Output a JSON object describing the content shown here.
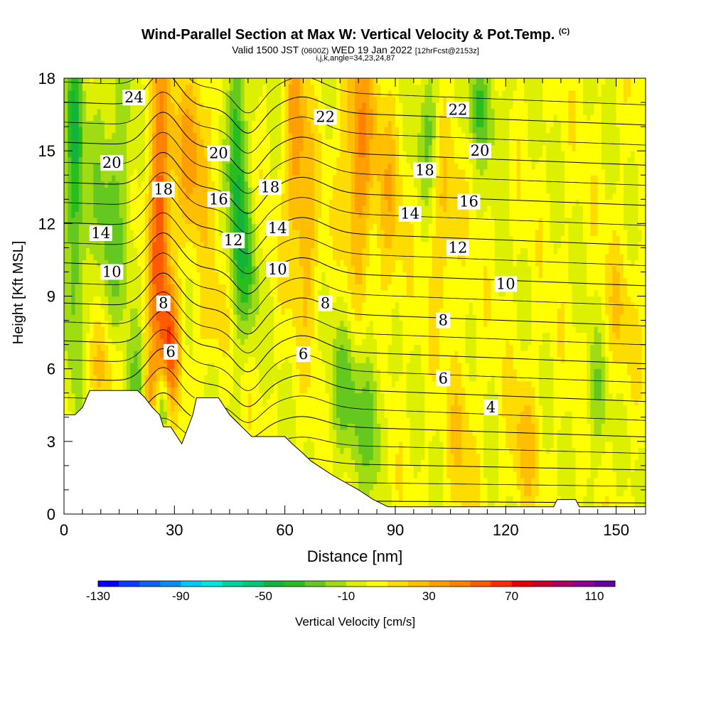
{
  "title": {
    "main": "Wind-Parallel Section at Max W: Vertical Velocity & Pot.Temp.",
    "copyright": "(C)",
    "valid_prefix": "Valid 1500 JST",
    "valid_utc": "(0600Z)",
    "valid_date": "WED 19 Jan 2022",
    "forecast": "[12hrFcst@2153z]",
    "indices": "i,j,k,angle=34,23,24,87"
  },
  "chart_data": {
    "type": "heatmap",
    "title": "Wind-Parallel Section at Max W: Vertical Velocity & Pot.Temp.",
    "xlabel": "Distance [nm]",
    "ylabel": "Height [Kft MSL]",
    "xlim": [
      0,
      158
    ],
    "ylim": [
      0,
      18
    ],
    "xticks": [
      0,
      30,
      60,
      90,
      120,
      150
    ],
    "yticks": [
      0,
      3,
      6,
      9,
      12,
      15,
      18
    ],
    "colorbar": {
      "label": "Vertical Velocity [cm/s]",
      "ticks": [
        -130,
        -90,
        -50,
        -10,
        30,
        70,
        110
      ],
      "levels": [
        -130,
        -120,
        -110,
        -100,
        -90,
        -80,
        -70,
        -60,
        -50,
        -40,
        -30,
        -20,
        -10,
        0,
        10,
        20,
        30,
        40,
        50,
        60,
        70,
        80,
        90,
        100,
        110
      ],
      "colors": [
        "#0000ff",
        "#0a3cff",
        "#0a64f0",
        "#0a8cf5",
        "#00c8ff",
        "#00e6dc",
        "#00d2a0",
        "#00c878",
        "#14b43c",
        "#28be1e",
        "#64c81e",
        "#a0dc14",
        "#dcf000",
        "#ffff00",
        "#ffdc00",
        "#ffbe00",
        "#ffa000",
        "#ff8200",
        "#ff5a00",
        "#ff2800",
        "#e60000",
        "#c80032",
        "#aa0064",
        "#8c0096",
        "#6400a0"
      ]
    },
    "terrain": {
      "x": [
        0,
        2,
        3,
        5,
        7,
        20,
        22,
        24,
        26,
        27,
        29,
        32,
        35,
        36,
        42,
        45,
        47,
        49,
        51,
        55,
        60,
        62,
        65,
        67,
        70,
        73,
        80,
        84,
        88,
        90,
        92,
        100,
        110,
        120,
        133,
        134,
        139,
        140,
        144,
        145,
        150,
        158
      ],
      "y": [
        4.1,
        4.1,
        4.1,
        4.4,
        5.1,
        5.1,
        4.8,
        4.4,
        4.1,
        3.6,
        3.6,
        2.9,
        4.1,
        4.8,
        4.8,
        4.1,
        3.8,
        3.5,
        3.2,
        3.2,
        3.2,
        2.9,
        2.5,
        2.2,
        1.9,
        1.6,
        1.0,
        0.6,
        0.3,
        0.3,
        0.3,
        0.3,
        0.3,
        0.3,
        0.3,
        0.6,
        0.6,
        0.3,
        0.3,
        0.3,
        0.3,
        0.3
      ]
    },
    "velocity_features": [
      {
        "x": 3,
        "y": 14,
        "value": -40,
        "sx": 2.5,
        "sy": 8
      },
      {
        "x": 13,
        "y": 13,
        "value": -25,
        "sx": 6,
        "sy": 6
      },
      {
        "x": 26,
        "y": 12,
        "value": 55,
        "sx": 3,
        "sy": 7
      },
      {
        "x": 29,
        "y": 7,
        "value": 40,
        "sx": 2.5,
        "sy": 2.5
      },
      {
        "x": 35,
        "y": 15,
        "value": 30,
        "sx": 5,
        "sy": 4
      },
      {
        "x": 47,
        "y": 15,
        "value": -45,
        "sx": 2.5,
        "sy": 6
      },
      {
        "x": 50,
        "y": 10,
        "value": -25,
        "sx": 3,
        "sy": 3
      },
      {
        "x": 20,
        "y": 5,
        "value": -25,
        "sx": 3,
        "sy": 2
      },
      {
        "x": 23,
        "y": 5,
        "value": 30,
        "sx": 2,
        "sy": 2
      },
      {
        "x": 27,
        "y": 4.5,
        "value": -35,
        "sx": 1.5,
        "sy": 1.5
      },
      {
        "x": 63,
        "y": 15,
        "value": 35,
        "sx": 3,
        "sy": 5
      },
      {
        "x": 67,
        "y": 11,
        "value": 20,
        "sx": 3,
        "sy": 4
      },
      {
        "x": 80,
        "y": 15,
        "value": 40,
        "sx": 4,
        "sy": 5
      },
      {
        "x": 88,
        "y": 13,
        "value": 20,
        "sx": 4,
        "sy": 5
      },
      {
        "x": 77,
        "y": 5,
        "value": -25,
        "sx": 5,
        "sy": 3
      },
      {
        "x": 84,
        "y": 4,
        "value": -25,
        "sx": 3,
        "sy": 3
      },
      {
        "x": 99,
        "y": 16,
        "value": -25,
        "sx": 3,
        "sy": 3
      },
      {
        "x": 103,
        "y": 12,
        "value": 20,
        "sx": 4,
        "sy": 4
      },
      {
        "x": 113,
        "y": 17,
        "value": -30,
        "sx": 3,
        "sy": 2
      },
      {
        "x": 118,
        "y": 16,
        "value": -15,
        "sx": 3,
        "sy": 2
      },
      {
        "x": 108,
        "y": 3,
        "value": 15,
        "sx": 4,
        "sy": 4
      },
      {
        "x": 125,
        "y": 3,
        "value": 20,
        "sx": 4,
        "sy": 3
      },
      {
        "x": 145,
        "y": 5,
        "value": -20,
        "sx": 3,
        "sy": 3
      },
      {
        "x": 150,
        "y": 8,
        "value": 15,
        "sx": 5,
        "sy": 3
      },
      {
        "x": 10,
        "y": 6,
        "value": 20,
        "sx": 4,
        "sy": 2
      },
      {
        "x": 40,
        "y": 8,
        "value": 15,
        "sx": 4,
        "sy": 2
      }
    ],
    "potential_temperature": {
      "levels": [
        4,
        5,
        6,
        7,
        8,
        9,
        10,
        11,
        12,
        13,
        14,
        15,
        16,
        17,
        18,
        19,
        20,
        21,
        22,
        23,
        24,
        25
      ],
      "labeled_levels": [
        4,
        6,
        8,
        10,
        12,
        14,
        16,
        18,
        20,
        22,
        24
      ],
      "labels": [
        {
          "text": "24",
          "x": 19,
          "y": 17.2
        },
        {
          "text": "22",
          "x": 71,
          "y": 16.4
        },
        {
          "text": "22",
          "x": 107,
          "y": 16.7
        },
        {
          "text": "20",
          "x": 13,
          "y": 14.5
        },
        {
          "text": "20",
          "x": 42,
          "y": 14.9
        },
        {
          "text": "20",
          "x": 113,
          "y": 15.0
        },
        {
          "text": "18",
          "x": 27,
          "y": 13.4
        },
        {
          "text": "18",
          "x": 56,
          "y": 13.5
        },
        {
          "text": "18",
          "x": 98,
          "y": 14.2
        },
        {
          "text": "16",
          "x": 42,
          "y": 13.0
        },
        {
          "text": "16",
          "x": 110,
          "y": 12.9
        },
        {
          "text": "14",
          "x": 10,
          "y": 11.6
        },
        {
          "text": "14",
          "x": 58,
          "y": 11.8
        },
        {
          "text": "14",
          "x": 94,
          "y": 12.4
        },
        {
          "text": "12",
          "x": 46,
          "y": 11.3
        },
        {
          "text": "12",
          "x": 107,
          "y": 11.0
        },
        {
          "text": "10",
          "x": 13,
          "y": 10.0
        },
        {
          "text": "10",
          "x": 58,
          "y": 10.1
        },
        {
          "text": "10",
          "x": 120,
          "y": 9.5
        },
        {
          "text": "8",
          "x": 27,
          "y": 8.7
        },
        {
          "text": "8",
          "x": 71,
          "y": 8.7
        },
        {
          "text": "8",
          "x": 103,
          "y": 8.0
        },
        {
          "text": "6",
          "x": 29,
          "y": 6.7
        },
        {
          "text": "6",
          "x": 65,
          "y": 6.6
        },
        {
          "text": "6",
          "x": 103,
          "y": 5.6
        },
        {
          "text": "4",
          "x": 116,
          "y": 4.4
        }
      ]
    }
  },
  "colorbar_label": "Vertical Velocity [cm/s]"
}
